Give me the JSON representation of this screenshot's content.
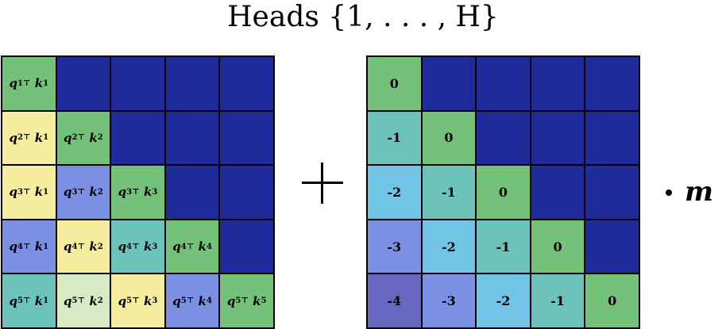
{
  "title": "Heads {1, . . . , H}",
  "operator_plus": "+",
  "operator_dot": "·",
  "multiplier": "m",
  "colors": {
    "empty": "#1f2a9b",
    "green": "#74c27a",
    "teal": "#6cc3bc",
    "sky": "#72c4e6",
    "periwinkle": "#7b8fe3",
    "indigo": "#6768bf",
    "yellow": "#f6ed9e",
    "pale_green": "#d6ebc3"
  },
  "left_matrix": {
    "rows": [
      [
        {
          "q": "1",
          "k": "1",
          "color": "green"
        },
        null,
        null,
        null,
        null
      ],
      [
        {
          "q": "2",
          "k": "1",
          "color": "yellow"
        },
        {
          "q": "2",
          "k": "2",
          "color": "green"
        },
        null,
        null,
        null
      ],
      [
        {
          "q": "3",
          "k": "1",
          "color": "yellow"
        },
        {
          "q": "3",
          "k": "2",
          "color": "periwinkle"
        },
        {
          "q": "3",
          "k": "3",
          "color": "green"
        },
        null,
        null
      ],
      [
        {
          "q": "4",
          "k": "1",
          "color": "periwinkle"
        },
        {
          "q": "4",
          "k": "2",
          "color": "yellow"
        },
        {
          "q": "4",
          "k": "3",
          "color": "teal"
        },
        {
          "q": "4",
          "k": "4",
          "color": "green"
        },
        null
      ],
      [
        {
          "q": "5",
          "k": "1",
          "color": "teal"
        },
        {
          "q": "5",
          "k": "2",
          "color": "pale_green"
        },
        {
          "q": "5",
          "k": "3",
          "color": "yellow"
        },
        {
          "q": "5",
          "k": "4",
          "color": "periwinkle"
        },
        {
          "q": "5",
          "k": "5",
          "color": "green"
        }
      ]
    ]
  },
  "right_matrix": {
    "rows": [
      [
        {
          "v": "0",
          "color": "green"
        },
        null,
        null,
        null,
        null
      ],
      [
        {
          "v": "-1",
          "color": "teal"
        },
        {
          "v": "0",
          "color": "green"
        },
        null,
        null,
        null
      ],
      [
        {
          "v": "-2",
          "color": "sky"
        },
        {
          "v": "-1",
          "color": "teal"
        },
        {
          "v": "0",
          "color": "green"
        },
        null,
        null
      ],
      [
        {
          "v": "-3",
          "color": "periwinkle"
        },
        {
          "v": "-2",
          "color": "sky"
        },
        {
          "v": "-1",
          "color": "teal"
        },
        {
          "v": "0",
          "color": "green"
        },
        null
      ],
      [
        {
          "v": "-4",
          "color": "indigo"
        },
        {
          "v": "-3",
          "color": "periwinkle"
        },
        {
          "v": "-2",
          "color": "sky"
        },
        {
          "v": "-1",
          "color": "teal"
        },
        {
          "v": "0",
          "color": "green"
        }
      ]
    ]
  }
}
